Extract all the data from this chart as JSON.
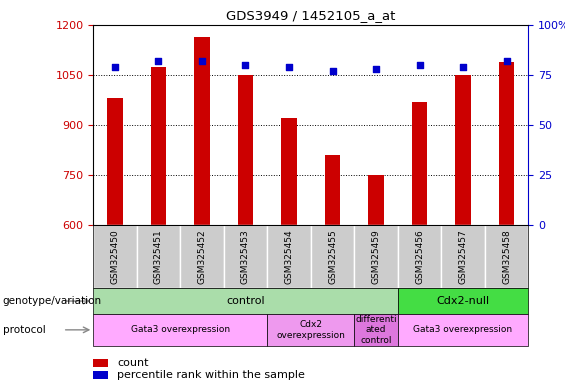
{
  "title": "GDS3949 / 1452105_a_at",
  "samples": [
    "GSM325450",
    "GSM325451",
    "GSM325452",
    "GSM325453",
    "GSM325454",
    "GSM325455",
    "GSM325459",
    "GSM325456",
    "GSM325457",
    "GSM325458"
  ],
  "counts": [
    980,
    1075,
    1165,
    1050,
    920,
    810,
    750,
    970,
    1050,
    1090
  ],
  "percentile_ranks": [
    79,
    82,
    82,
    80,
    79,
    77,
    78,
    80,
    79,
    82
  ],
  "ylim_left": [
    600,
    1200
  ],
  "ylim_right": [
    0,
    100
  ],
  "yticks_left": [
    600,
    750,
    900,
    1050,
    1200
  ],
  "yticks_right": [
    0,
    25,
    50,
    75,
    100
  ],
  "bar_color": "#cc0000",
  "dot_color": "#0000cc",
  "genotype_groups": [
    {
      "label": "control",
      "start": 0,
      "end": 7,
      "color": "#aaddaa"
    },
    {
      "label": "Cdx2-null",
      "start": 7,
      "end": 10,
      "color": "#44dd44"
    }
  ],
  "protocol_groups": [
    {
      "label": "Gata3 overexpression",
      "start": 0,
      "end": 4,
      "color": "#ffaaff"
    },
    {
      "label": "Cdx2\noverexpression",
      "start": 4,
      "end": 6,
      "color": "#ee99ee"
    },
    {
      "label": "differenti\nated\ncontrol",
      "start": 6,
      "end": 7,
      "color": "#dd77dd"
    },
    {
      "label": "Gata3 overexpression",
      "start": 7,
      "end": 10,
      "color": "#ffaaff"
    }
  ],
  "tick_bg_color": "#cccccc",
  "left_axis_color": "#cc0000",
  "right_axis_color": "#0000cc",
  "bar_width": 0.35
}
